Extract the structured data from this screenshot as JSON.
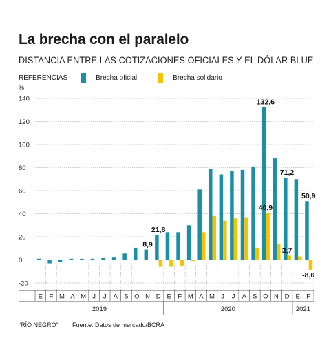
{
  "title": "La brecha con el paralelo",
  "subtitle": "DISTANCIA ENTRE LAS COTIZACIONES OFICIALES Y EL DÓLAR BLUE",
  "legend": {
    "heading": "REFERENCIAS",
    "items": [
      {
        "label": "Brecha oficial",
        "color": "#1a8fa6"
      },
      {
        "label": "Brecha solidario",
        "color": "#f5c400"
      }
    ]
  },
  "footer": {
    "source_outlet": "“RÍO NEGRO”",
    "source": "Fuente: Datos de mercado/BCRA"
  },
  "chart_data": {
    "type": "bar",
    "ylabel": "%",
    "ylim": [
      -20,
      140
    ],
    "yticks": [
      -20,
      0,
      20,
      40,
      60,
      80,
      100,
      120,
      140
    ],
    "grid": true,
    "categories": [
      "E",
      "F",
      "M",
      "A",
      "M",
      "J",
      "J",
      "A",
      "S",
      "O",
      "N",
      "D",
      "E",
      "F",
      "M",
      "A",
      "M",
      "J",
      "J",
      "A",
      "S",
      "O",
      "N",
      "D",
      "E",
      "F"
    ],
    "years": [
      {
        "label": "2019",
        "start": 0,
        "end": 11
      },
      {
        "label": "2020",
        "start": 12,
        "end": 23
      },
      {
        "label": "2021",
        "start": 24,
        "end": 25
      }
    ],
    "series": [
      {
        "name": "Brecha oficial",
        "color": "#1a8fa6",
        "values": [
          1,
          -3,
          -2,
          1,
          1,
          1,
          1.5,
          2,
          5.5,
          10.5,
          8.9,
          21.8,
          24,
          24,
          30,
          61,
          79,
          74,
          77,
          78,
          81,
          132.6,
          88,
          71.2,
          70,
          50.9
        ]
      },
      {
        "name": "Brecha solidario",
        "color": "#f5c400",
        "values": [
          null,
          null,
          null,
          null,
          null,
          null,
          null,
          null,
          null,
          null,
          null,
          -6,
          -6,
          -5,
          -1,
          24,
          38,
          34,
          36,
          37,
          10,
          40.9,
          14,
          3.7,
          3,
          -8.6
        ]
      }
    ],
    "annotations": [
      {
        "text": "8,9",
        "category_index": 10,
        "value": 8.9
      },
      {
        "text": "21,8",
        "category_index": 11,
        "value": 21.8
      },
      {
        "text": "132,6",
        "category_index": 21,
        "value": 132.6
      },
      {
        "text": "40,9",
        "category_index": 21,
        "value": 40.9
      },
      {
        "text": "71,2",
        "category_index": 23,
        "value": 71.2
      },
      {
        "text": "3,7",
        "category_index": 23,
        "value": 3.7
      },
      {
        "text": "50,9",
        "category_index": 25,
        "value": 50.9
      },
      {
        "text": "-8,6",
        "category_index": 25,
        "value": -8.6
      }
    ]
  }
}
